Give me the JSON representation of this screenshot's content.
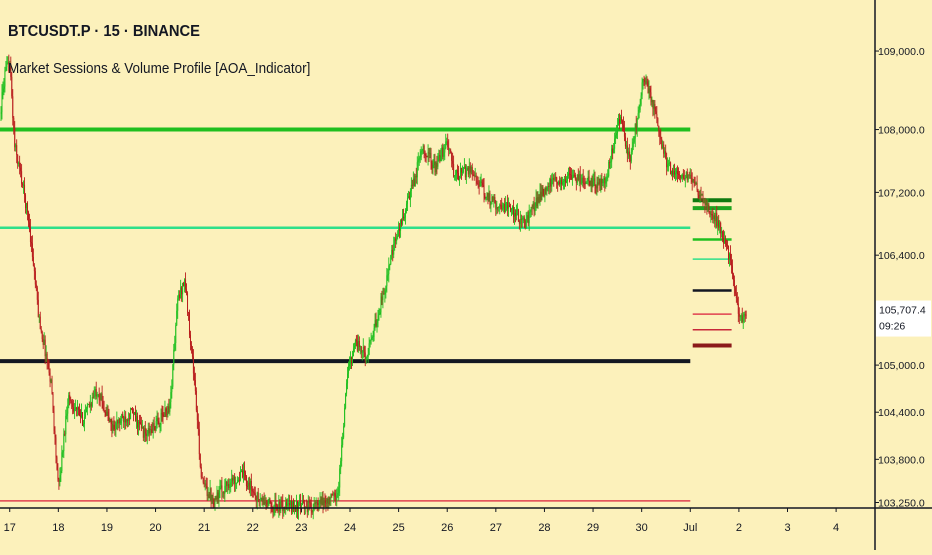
{
  "header": {
    "symbol_line": "BTCUSDT.P · 15 · BINANCE",
    "indicator_line": "Market Sessions & Volume Profile [AOA_Indicator]"
  },
  "colors": {
    "background": "#fcf1bb",
    "axis_line": "#131722",
    "bull": "#1fbf1f",
    "bear": "#b81c1c",
    "current_price_label_bg": "#ffffff"
  },
  "chart_data": {
    "type": "candlestick",
    "x_tick_labels": [
      "17",
      "18",
      "19",
      "20",
      "21",
      "22",
      "23",
      "24",
      "25",
      "26",
      "27",
      "28",
      "29",
      "30",
      "Jul",
      "2",
      "3",
      "4"
    ],
    "y_tick_labels": [
      "109,000.0",
      "108,000.0",
      "107,200.0",
      "106,400.0",
      "105,000.0",
      "104,400.0",
      "103,800.0",
      "103,250.0"
    ],
    "y_tick_values": [
      109000,
      108000,
      107200,
      106400,
      105000,
      104400,
      103800,
      103250
    ],
    "ylim": [
      103180,
      109650
    ],
    "xlim_days": [
      16.8,
      34.8
    ],
    "current_price": "105,707.4",
    "countdown": "09:26",
    "grid": false,
    "series_path": [
      [
        16.8,
        108200
      ],
      [
        16.9,
        108700
      ],
      [
        17.0,
        108850
      ],
      [
        17.1,
        107800
      ],
      [
        17.25,
        107350
      ],
      [
        17.4,
        106800
      ],
      [
        17.6,
        105600
      ],
      [
        17.85,
        104800
      ],
      [
        18.0,
        103400
      ],
      [
        18.2,
        104600
      ],
      [
        18.5,
        104300
      ],
      [
        18.8,
        104700
      ],
      [
        19.1,
        104200
      ],
      [
        19.5,
        104400
      ],
      [
        19.8,
        104100
      ],
      [
        20.1,
        104300
      ],
      [
        20.3,
        104500
      ],
      [
        20.45,
        105800
      ],
      [
        20.6,
        106100
      ],
      [
        20.8,
        104800
      ],
      [
        20.95,
        103500
      ],
      [
        21.2,
        103300
      ],
      [
        21.5,
        103500
      ],
      [
        21.8,
        103600
      ],
      [
        22.1,
        103300
      ],
      [
        22.4,
        103200
      ],
      [
        22.8,
        103200
      ],
      [
        23.3,
        103200
      ],
      [
        23.75,
        103350
      ],
      [
        23.95,
        104900
      ],
      [
        24.1,
        105300
      ],
      [
        24.35,
        105100
      ],
      [
        24.6,
        105700
      ],
      [
        24.9,
        106500
      ],
      [
        25.1,
        106900
      ],
      [
        25.3,
        107300
      ],
      [
        25.5,
        107800
      ],
      [
        25.75,
        107500
      ],
      [
        26.0,
        107850
      ],
      [
        26.15,
        107400
      ],
      [
        26.5,
        107500
      ],
      [
        26.8,
        107150
      ],
      [
        27.0,
        107050
      ],
      [
        27.3,
        107000
      ],
      [
        27.6,
        106800
      ],
      [
        27.9,
        107150
      ],
      [
        28.1,
        107300
      ],
      [
        28.3,
        107350
      ],
      [
        28.6,
        107400
      ],
      [
        28.9,
        107350
      ],
      [
        29.15,
        107300
      ],
      [
        29.3,
        107450
      ],
      [
        29.55,
        108150
      ],
      [
        29.75,
        107600
      ],
      [
        29.95,
        108300
      ],
      [
        30.05,
        108700
      ],
      [
        30.25,
        108250
      ],
      [
        30.5,
        107600
      ],
      [
        30.7,
        107400
      ],
      [
        30.9,
        107400
      ],
      [
        31.1,
        107300
      ],
      [
        31.3,
        107050
      ],
      [
        31.5,
        106900
      ],
      [
        31.7,
        106600
      ],
      [
        31.85,
        106300
      ],
      [
        31.95,
        105800
      ],
      [
        32.05,
        105600
      ],
      [
        32.15,
        105700
      ]
    ],
    "horizontal_levels": [
      {
        "price": 108000,
        "from_day": 16.8,
        "to_day": 31.0,
        "color": "#1fbf1f",
        "style": "thick"
      },
      {
        "price": 106750,
        "from_day": 16.8,
        "to_day": 31.0,
        "color": "#2ee08a",
        "style": "medium"
      },
      {
        "price": 105050,
        "from_day": 16.8,
        "to_day": 31.0,
        "color": "#131722",
        "style": "thick"
      },
      {
        "price": 103270,
        "from_day": 16.8,
        "to_day": 31.0,
        "color": "#e0404f",
        "style": "thin"
      },
      {
        "price": 107100,
        "from_day": 31.05,
        "to_day": 31.85,
        "color": "#0f7a0f",
        "style": "thick"
      },
      {
        "price": 107000,
        "from_day": 31.05,
        "to_day": 31.85,
        "color": "#1fa51f",
        "style": "thick"
      },
      {
        "price": 106600,
        "from_day": 31.05,
        "to_day": 31.85,
        "color": "#1fbf1f",
        "style": "medium"
      },
      {
        "price": 106350,
        "from_day": 31.05,
        "to_day": 31.85,
        "color": "#2ee08a",
        "style": "thin"
      },
      {
        "price": 105950,
        "from_day": 31.05,
        "to_day": 31.85,
        "color": "#131722",
        "style": "medium"
      },
      {
        "price": 105650,
        "from_day": 31.05,
        "to_day": 31.85,
        "color": "#e0404f",
        "style": "thin"
      },
      {
        "price": 105450,
        "from_day": 31.05,
        "to_day": 31.85,
        "color": "#c8283a",
        "style": "thin"
      },
      {
        "price": 105250,
        "from_day": 31.05,
        "to_day": 31.85,
        "color": "#8b1a1a",
        "style": "thick"
      }
    ]
  }
}
